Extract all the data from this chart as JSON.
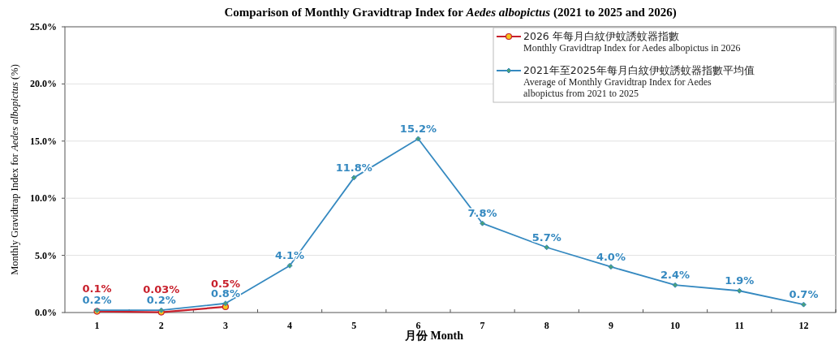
{
  "chart_data": {
    "type": "line",
    "title": "Comparison  of Monthly Gravidtrap Index for *Aedes albopictus* (2021 to 2025 and 2026)",
    "xlabel": "月份 Month",
    "ylabel": "Monthly Gravidtrap Index for *Aedes albopictus* (%)",
    "categories": [
      "1",
      "2",
      "3",
      "4",
      "5",
      "6",
      "7",
      "8",
      "9",
      "10",
      "11",
      "12"
    ],
    "series": [
      {
        "name": "2026 年每月白紋伊蚊誘蚊器指數\nMonthly Gravidtrap Index  for Aedes albopictus in 2026",
        "color": "#c8202c",
        "marker": "circle",
        "values": [
          0.1,
          0.03,
          0.5,
          null,
          null,
          null,
          null,
          null,
          null,
          null,
          null,
          null
        ],
        "value_labels": [
          "0.1%",
          "0.03%",
          "0.5%",
          null,
          null,
          null,
          null,
          null,
          null,
          null,
          null,
          null
        ]
      },
      {
        "name": "2021年至2025年每月白紋伊蚊誘蚊器指數平均值\nAverage of Monthly Gravidtrap Index for Aedes\nalbopictus  from 2021 to 2025",
        "color": "#3589c0",
        "marker": "diamond",
        "values": [
          0.2,
          0.2,
          0.8,
          4.1,
          11.8,
          15.2,
          7.8,
          5.7,
          4.0,
          2.4,
          1.9,
          0.7
        ],
        "value_labels": [
          "0.2%",
          "0.2%",
          "0.8%",
          "4.1%",
          "11.8%",
          "15.2%",
          "7.8%",
          "5.7%",
          "4.0%",
          "2.4%",
          "1.9%",
          "0.7%"
        ]
      }
    ],
    "ylim": [
      0,
      25
    ],
    "yticks": [
      {
        "value": 0,
        "label": "0.0%"
      },
      {
        "value": 5,
        "label": "5.0%"
      },
      {
        "value": 10,
        "label": "10.0%"
      },
      {
        "value": 15,
        "label": "15.0%"
      },
      {
        "value": 20,
        "label": "20.0%"
      },
      {
        "value": 25,
        "label": "25.0%"
      }
    ],
    "grid": "y",
    "legend": "top right"
  }
}
